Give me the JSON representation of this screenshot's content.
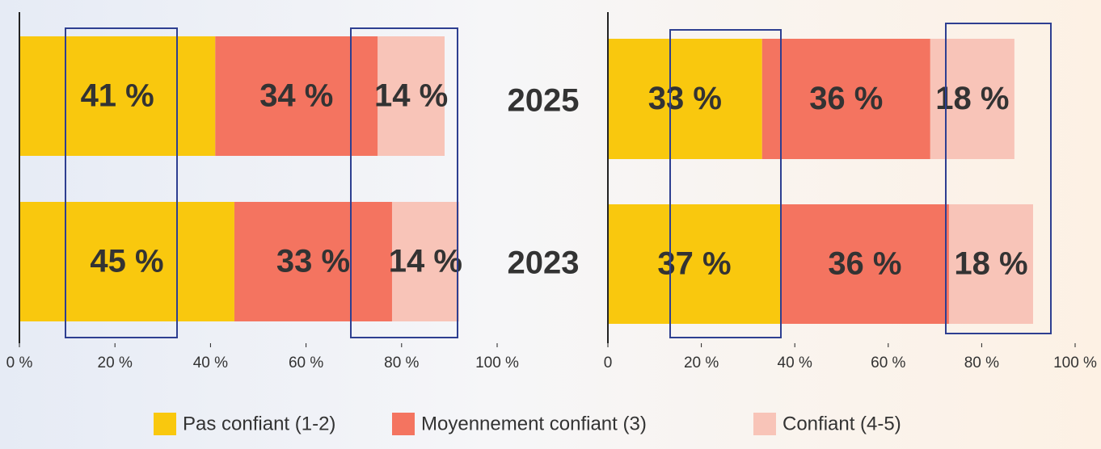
{
  "chart_data": [
    {
      "type": "stacked_barh",
      "categories": [
        "2025",
        "2023"
      ],
      "series": [
        {
          "name": "Pas confiant (1-2)",
          "color": "#f9c80e",
          "values": [
            41,
            45
          ],
          "value_labels": [
            "41 %",
            "45 %"
          ]
        },
        {
          "name": "Moyennement confiant (3)",
          "color": "#f47460",
          "values": [
            34,
            33
          ],
          "value_labels": [
            "34 %",
            "33 %"
          ]
        },
        {
          "name": "Confiant (4-5)",
          "color": "#f8c4b8",
          "values": [
            14,
            14
          ],
          "value_labels": [
            "14 %",
            "14 %"
          ]
        }
      ],
      "xlim": [
        0,
        100
      ],
      "xticks": [
        {
          "value": 0,
          "label": "0 %"
        },
        {
          "value": 20,
          "label": "20 %"
        },
        {
          "value": 40,
          "label": "40 %"
        },
        {
          "value": 60,
          "label": "60 %"
        },
        {
          "value": 80,
          "label": "80 %"
        },
        {
          "value": 100,
          "label": "100 %"
        }
      ],
      "legend": "bottom"
    },
    {
      "type": "stacked_barh",
      "series": [
        {
          "values": [
            33,
            37
          ],
          "value_labels": [
            "33 %",
            "37 %"
          ]
        },
        {
          "values": [
            36,
            36
          ],
          "value_labels": [
            "36 %",
            "36 %"
          ]
        },
        {
          "values": [
            18,
            18
          ],
          "value_labels": [
            "18 %",
            "18 %"
          ]
        }
      ],
      "xlim": [
        0,
        100
      ],
      "xticks": [
        0,
        {
          "value": 20,
          "label": "20 %"
        },
        {
          "value": 40,
          "label": "40 %"
        },
        {
          "value": 60,
          "label": "60 %"
        },
        {
          "value": 80,
          "label": "80 %"
        },
        {
          "value": 100,
          "label": "100 %"
        }
      ]
    }
  ]
}
